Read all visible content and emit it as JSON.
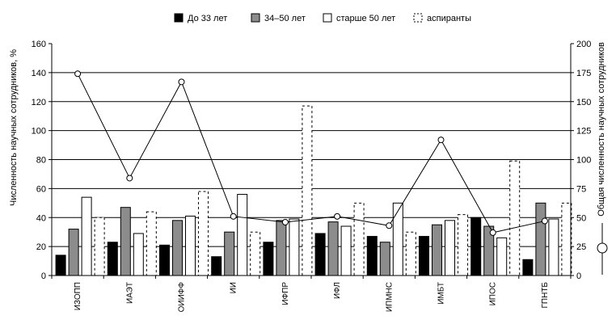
{
  "chart_data": {
    "type": "bar",
    "categories": [
      "ИЗОПП",
      "ИАЭТ",
      "ОИИФФ",
      "ИИ",
      "ИФПР",
      "ИФЛ",
      "ИПМНС",
      "ИМБТ",
      "ИПОС",
      "ГПНТБ"
    ],
    "series": [
      {
        "name": "До 33 лет",
        "style": "solid-black",
        "values": [
          14,
          23,
          21,
          13,
          23,
          29,
          27,
          27,
          40,
          11
        ]
      },
      {
        "name": "34–50 лет",
        "style": "gray",
        "values": [
          32,
          47,
          38,
          30,
          38,
          37,
          23,
          35,
          34,
          50
        ]
      },
      {
        "name": "старше 50 лет",
        "style": "white",
        "values": [
          54,
          29,
          41,
          56,
          39,
          34,
          50,
          38,
          26,
          39
        ]
      },
      {
        "name": "аспиранты",
        "style": "dashed",
        "values": [
          40,
          44,
          58,
          30,
          117,
          50,
          30,
          42,
          79,
          50
        ]
      }
    ],
    "line_series": {
      "name": "Общая численность научных сотрудников",
      "axis": "right",
      "values": [
        174,
        84,
        167,
        51,
        46,
        51,
        43,
        117,
        37,
        47
      ]
    },
    "ylabel_left": "Численность научных сотрудников, %",
    "ylabel_right": "Общая численность научных сотрудников",
    "ylim_left": [
      0,
      160
    ],
    "yticks_left": [
      "0",
      "20",
      "40",
      "60",
      "80",
      "100",
      "120",
      "140",
      "160"
    ],
    "ylim_right": [
      0,
      200
    ],
    "yticks_right": [
      "0",
      "25",
      "50",
      "75",
      "100",
      "125",
      "150",
      "175",
      "200"
    ],
    "grid": true,
    "legend_position": "top"
  }
}
